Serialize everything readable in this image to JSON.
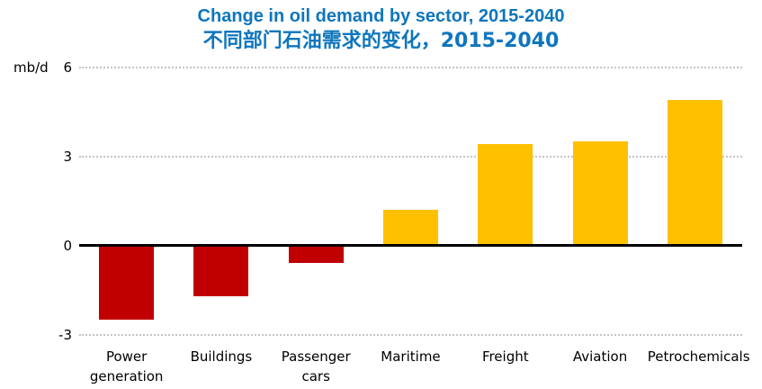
{
  "chart_data": {
    "type": "bar",
    "title": "Change in oil demand by sector, 2015-2040",
    "title_cn": "不同部门石油需求的变化，2015-2040",
    "unit_label": "mb/d",
    "xlabel": "",
    "ylabel": "mb/d",
    "ylim": [
      -3,
      6
    ],
    "yticks": [
      {
        "value": 6,
        "label": "6"
      },
      {
        "value": 3,
        "label": "3"
      },
      {
        "value": 0,
        "label": "0"
      },
      {
        "value": -3,
        "label": "-3"
      }
    ],
    "gridline_values": [
      6,
      3,
      -3
    ],
    "grid": "dotted horizontal gridlines, solid black zero axis",
    "legend": "none",
    "categories": [
      "Power generation",
      "Buildings",
      "Passenger cars",
      "Maritime",
      "Freight",
      "Aviation",
      "Petrochemicals"
    ],
    "values": [
      -2.5,
      -1.7,
      -0.6,
      1.2,
      3.4,
      3.5,
      4.9
    ],
    "colors": {
      "title_blue": "#0e76bd",
      "negative_bar": "#c00000",
      "positive_bar": "#ffc000",
      "gridline_gray": "#c4c4c4",
      "axis_black": "#000000"
    }
  }
}
